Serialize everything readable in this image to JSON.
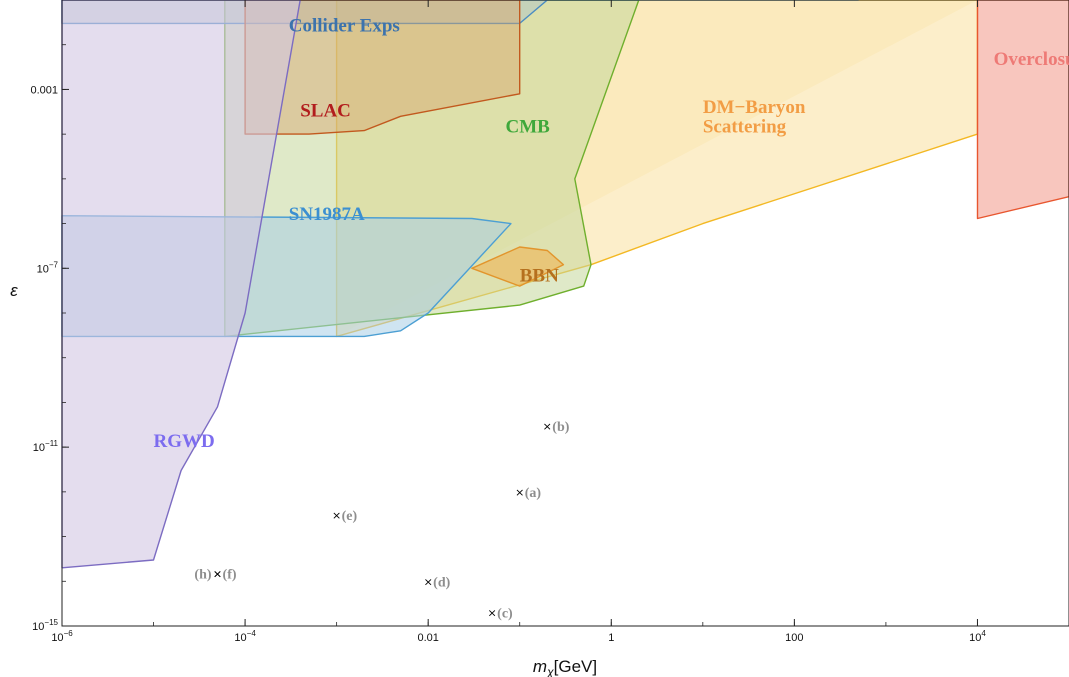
{
  "chart_data": {
    "type": "area",
    "xlabel": "m_χ[GeV]",
    "ylabel": "ε",
    "xscale": "log",
    "yscale": "log",
    "xlim": [
      1e-06,
      100000.0
    ],
    "ylim": [
      1e-15,
      0.1
    ],
    "x_ticks": [
      {
        "value": 1e-06,
        "base": "10",
        "exp": "−6"
      },
      {
        "value": 0.0001,
        "base": "10",
        "exp": "−4"
      },
      {
        "value": 0.01,
        "base": "0.01",
        "exp": ""
      },
      {
        "value": 1,
        "base": "1",
        "exp": ""
      },
      {
        "value": 100,
        "base": "100",
        "exp": ""
      },
      {
        "value": 10000.0,
        "base": "10",
        "exp": "4"
      }
    ],
    "y_ticks": [
      {
        "value": 1e-15,
        "base": "10",
        "exp": "−15"
      },
      {
        "value": 1e-11,
        "base": "10",
        "exp": "−11"
      },
      {
        "value": 1e-07,
        "base": "10",
        "exp": "−7"
      },
      {
        "value": 0.001,
        "base": "0.001",
        "exp": ""
      }
    ],
    "grid": false,
    "regions": [
      {
        "name": "DM-Baryon Scattering band",
        "fill": "#f7e1a8",
        "opacity": 0.55,
        "stroke": "none",
        "points": [
          [
            0.001,
            3e-09
          ],
          [
            10000.0,
            0.1
          ],
          [
            100000.0,
            0.1
          ],
          [
            100000.0,
            0.1
          ],
          [
            0.001,
            0.1
          ]
        ]
      },
      {
        "name": "DM-Baryon Scattering",
        "fill": "#fbe8b6",
        "opacity": 0.72,
        "stroke": "#f3b823",
        "points": [
          [
            0.001,
            3e-09
          ],
          [
            0.6,
            1.2e-07
          ],
          [
            10,
            1e-06
          ],
          [
            10000.0,
            0.0001
          ],
          [
            10000.0,
            0.1
          ],
          [
            0.001,
            0.1
          ]
        ]
      },
      {
        "name": "Overclosure",
        "fill": "#f6b3a8",
        "opacity": 0.75,
        "stroke": "#e8562f",
        "points": [
          [
            10000.0,
            1.3e-06
          ],
          [
            100000.0,
            4e-06
          ],
          [
            100000.0,
            0.1
          ],
          [
            10000.0,
            0.1
          ]
        ]
      },
      {
        "name": "CMB",
        "fill": "#c5d79a",
        "opacity": 0.55,
        "stroke": "#6faf2d",
        "points": [
          [
            6e-05,
            3e-09
          ],
          [
            0.1,
            1.5e-08
          ],
          [
            0.5,
            4e-08
          ],
          [
            0.6,
            1.2e-07
          ],
          [
            0.4,
            1e-05
          ],
          [
            2,
            0.1
          ],
          [
            6e-05,
            0.1
          ]
        ]
      },
      {
        "name": "Collider Exps",
        "fill": "#aec4c8",
        "opacity": 0.5,
        "stroke": "#4a8cc2",
        "points": [
          [
            1e-06,
            0.03
          ],
          [
            0.1,
            0.03
          ],
          [
            0.2,
            0.1
          ],
          [
            1,
            0.15
          ],
          [
            30,
            0.4
          ],
          [
            500,
            0.1
          ],
          [
            1e-06,
            0.1
          ]
        ]
      },
      {
        "name": "SLAC",
        "fill": "#d8a56c",
        "opacity": 0.45,
        "stroke": "#c2591e",
        "points": [
          [
            0.0001,
            0.0001
          ],
          [
            0.0005,
            0.0001
          ],
          [
            0.002,
            0.00012
          ],
          [
            0.005,
            0.00025
          ],
          [
            0.1,
            0.0008
          ],
          [
            0.1,
            0.1
          ],
          [
            0.0001,
            0.1
          ]
        ]
      },
      {
        "name": "SN1987A",
        "fill": "#a7cde6",
        "opacity": 0.55,
        "stroke": "#4c9fd3",
        "points": [
          [
            1e-06,
            1.5e-06
          ],
          [
            0.03,
            1.3e-06
          ],
          [
            0.08,
            1e-06
          ],
          [
            0.01,
            1e-08
          ],
          [
            0.005,
            4e-09
          ],
          [
            0.002,
            3e-09
          ],
          [
            1e-06,
            3e-09
          ]
        ]
      },
      {
        "name": "BBN",
        "fill": "#f0b14d",
        "opacity": 0.55,
        "stroke": "#e2952c",
        "points": [
          [
            0.03,
            1e-07
          ],
          [
            0.1,
            3e-07
          ],
          [
            0.2,
            2.5e-07
          ],
          [
            0.3,
            1.2e-07
          ],
          [
            0.1,
            4e-08
          ],
          [
            0.03,
            1e-07
          ]
        ]
      },
      {
        "name": "RGWD",
        "fill": "#d2c6e3",
        "opacity": 0.6,
        "stroke": "#7c6cc2",
        "points": [
          [
            1e-06,
            2e-14
          ],
          [
            1e-05,
            3e-14
          ],
          [
            2e-05,
            3e-12
          ],
          [
            5e-05,
            8e-11
          ],
          [
            0.0001,
            1e-08
          ],
          [
            0.0004,
            0.1
          ],
          [
            1e-06,
            0.1
          ]
        ]
      }
    ],
    "labels": [
      {
        "text": "Collider Exps",
        "x": 0.0003,
        "y": 0.02,
        "color": "#3c73ad"
      },
      {
        "text": "SLAC",
        "x": 0.0004,
        "y": 0.00025,
        "color": "#b21d1d"
      },
      {
        "text": "CMB",
        "x": 0.07,
        "y": 0.00011,
        "color": "#3fa83b"
      },
      {
        "text": "DM−Baryon",
        "x": 10,
        "y": 0.0003,
        "color": "#f29d45"
      },
      {
        "text": "Scattering",
        "x": 10,
        "y": 0.00011,
        "color": "#f29d45"
      },
      {
        "text": "Overclosure",
        "x": 15000,
        "y": 0.0035,
        "color": "#ee7a76"
      },
      {
        "text": "SN1987A",
        "x": 0.0003,
        "y": 1.2e-06,
        "color": "#3b8fd1"
      },
      {
        "text": "BBN",
        "x": 0.1,
        "y": 5e-08,
        "color": "#b5701e"
      },
      {
        "text": "RGWD",
        "x": 1e-05,
        "y": 1e-11,
        "color": "#7c6cef"
      }
    ],
    "points": [
      {
        "label": "(a)",
        "x": 0.1,
        "y": 1e-12
      },
      {
        "label": "(b)",
        "x": 0.2,
        "y": 3e-11
      },
      {
        "label": "(c)",
        "x": 0.05,
        "y": 2e-15
      },
      {
        "label": "(d)",
        "x": 0.01,
        "y": 1e-14
      },
      {
        "label": "(e)",
        "x": 0.001,
        "y": 3e-13
      },
      {
        "label": "(f)",
        "x": 5e-05,
        "y": 1.5e-14
      },
      {
        "label": "(h)",
        "x": 5e-05,
        "y": 1.5e-14
      }
    ]
  }
}
